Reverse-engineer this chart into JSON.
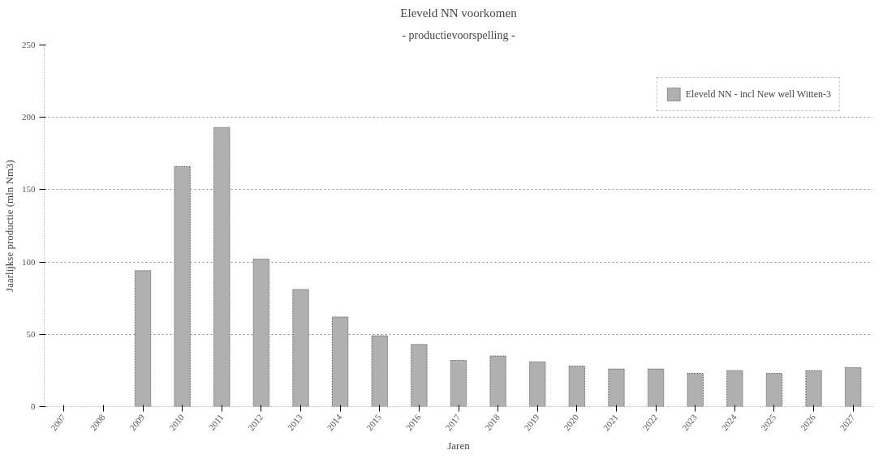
{
  "chart_data": {
    "type": "bar",
    "title": "Eleveld NN voorkomen",
    "subtitle": "- productievoorspelling -",
    "xlabel": "Jaren",
    "ylabel": "Jaarlijkse productie (mln Nm3)",
    "categories": [
      "2007",
      "2008",
      "2009",
      "2010",
      "2011",
      "2012",
      "2013",
      "2014",
      "2015",
      "2016",
      "2017",
      "2018",
      "2019",
      "2020",
      "2021",
      "2022",
      "2023",
      "2024",
      "2025",
      "2026",
      "2027"
    ],
    "series": [
      {
        "name": "Eleveld NN - incl New well Witten-3",
        "color": "#b0b0b0",
        "values": [
          null,
          null,
          94,
          166,
          193,
          102,
          81,
          62,
          49,
          43,
          32,
          35,
          31,
          28,
          26,
          26,
          23,
          25,
          23,
          25,
          27
        ]
      }
    ],
    "ylim": [
      0,
      250
    ],
    "yticks": [
      0,
      50,
      100,
      150,
      200,
      250
    ],
    "grid": "y",
    "legend": "top right"
  }
}
